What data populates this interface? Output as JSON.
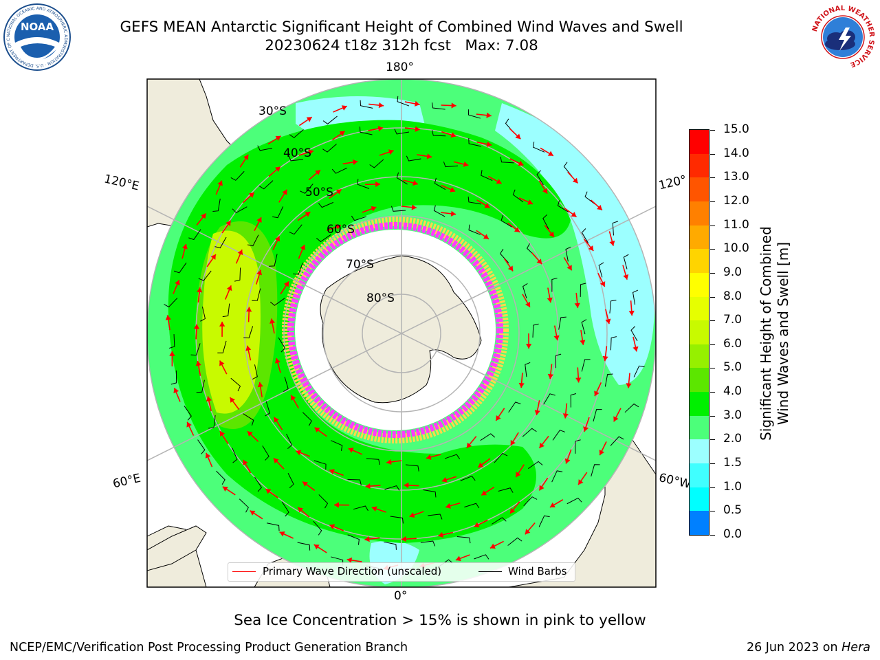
{
  "header": {
    "title_line1": "GEFS MEAN Antarctic Significant Height of Combined Wind Waves and Swell",
    "title_line2": "20230624 t18z 312h fcst   Max: 7.08"
  },
  "logos": {
    "noaa_text": "NOAA",
    "noaa_ring": "NATIONAL OCEANIC AND ATMOSPHERIC ADMINISTRATION · U.S. DEPARTMENT OF COMMERCE ·",
    "nws_ring": "NATIONAL WEATHER SERVICE"
  },
  "map": {
    "longitude_labels": {
      "top": "180°",
      "bottom": "0°",
      "left_upper": "120°E",
      "left_lower": "60°E",
      "right_upper": "120°",
      "right_lower": "60°W"
    },
    "latitude_labels": [
      "30°S",
      "40°S",
      "50°S",
      "60°S",
      "70°S",
      "80°S"
    ],
    "colors": {
      "land": "#efecdc",
      "ocean_3_4": "#4cff7a",
      "ocean_4_5": "#00f000",
      "ocean_5_6": "#5ce600",
      "ocean_6_7": "#c8fa00",
      "ocean_2_3": "#9cffff",
      "ice_pink": "#ff3cff",
      "ice_yellow": "#ffd84a",
      "wave_arrow": "#ff0000",
      "wind_barb": "#000000",
      "graticule": "#b4b4b4"
    }
  },
  "colorbar": {
    "title_line1": "Significant Height of Combined",
    "title_line2": "Wind Waves and Swell [m]",
    "ticks": [
      "15.0",
      "14.0",
      "13.0",
      "12.0",
      "11.0",
      "10.0",
      "9.0",
      "8.0",
      "7.0",
      "6.0",
      "5.0",
      "4.0",
      "3.0",
      "2.0",
      "1.5",
      "1.0",
      "0.5",
      "0.0"
    ],
    "colors": [
      "#ff0000",
      "#ff2a00",
      "#ff5500",
      "#ff8000",
      "#ffaa00",
      "#ffd400",
      "#ffff00",
      "#e6ff00",
      "#c8fa00",
      "#96f000",
      "#5ce600",
      "#00f000",
      "#4cff7a",
      "#9cffff",
      "#40ffff",
      "#00ffff",
      "#0080ff",
      "#0000ff"
    ]
  },
  "legend": {
    "wave_label": "Primary Wave Direction (unscaled)",
    "wind_label": "Wind Barbs",
    "wave_color": "#ff0000",
    "wind_color": "#000000"
  },
  "caption": "Sea Ice Concentration > 15% is shown in pink to yellow",
  "footer": {
    "left": "NCEP/EMC/Verification Post Processing Product Generation Branch",
    "right_prefix": "26 Jun 2023 on ",
    "right_system": "Hera"
  }
}
